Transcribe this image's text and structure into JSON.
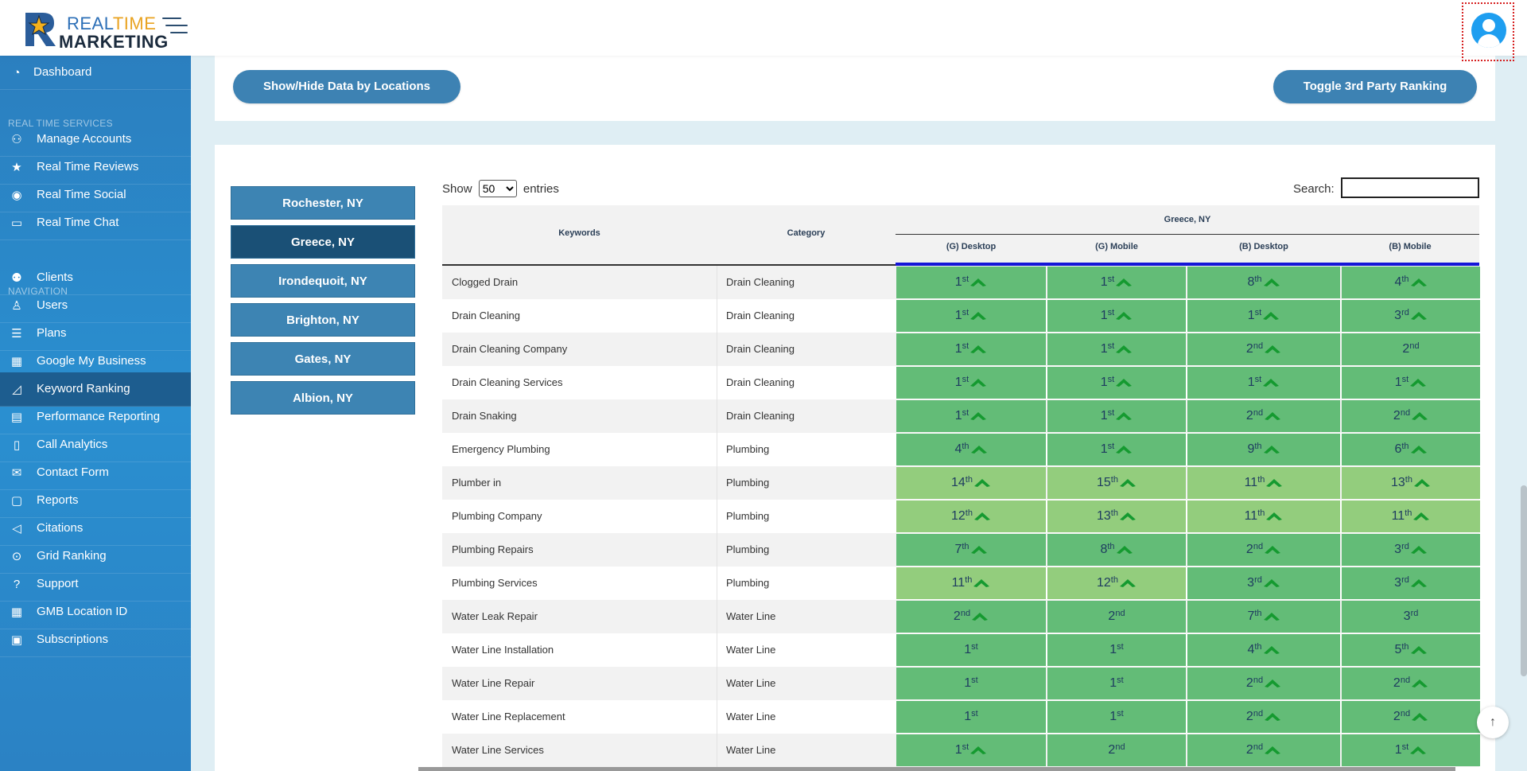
{
  "header": {
    "logo_real": "REAL",
    "logo_time": "TIME",
    "logo_marketing": "MARKETING"
  },
  "sidebar": {
    "sections": {
      "services": "REAL TIME SERVICES",
      "navigation": "NAVIGATION"
    },
    "items": [
      {
        "label": "Dashboard",
        "icon": "dashboard-icon",
        "glyph": "◔"
      },
      {
        "label": "Manage Accounts",
        "icon": "accounts-icon",
        "glyph": "⚇"
      },
      {
        "label": "Real Time Reviews",
        "icon": "star-icon",
        "glyph": "★"
      },
      {
        "label": "Real Time Social",
        "icon": "rss-icon",
        "glyph": "◉"
      },
      {
        "label": "Real Time Chat",
        "icon": "chat-icon",
        "glyph": "▭"
      },
      {
        "label": "Clients",
        "icon": "clients-icon",
        "glyph": "⚉"
      },
      {
        "label": "Users",
        "icon": "user-icon",
        "glyph": "♙"
      },
      {
        "label": "Plans",
        "icon": "list-icon",
        "glyph": "☰"
      },
      {
        "label": "Google My Business",
        "icon": "business-icon",
        "glyph": "▦"
      },
      {
        "label": "Keyword Ranking",
        "icon": "chart-icon",
        "glyph": "◿"
      },
      {
        "label": "Performance Reporting",
        "icon": "report-icon",
        "glyph": "▤"
      },
      {
        "label": "Call Analytics",
        "icon": "phone-icon",
        "glyph": "▯"
      },
      {
        "label": "Contact Form",
        "icon": "mail-icon",
        "glyph": "✉"
      },
      {
        "label": "Reports",
        "icon": "file-icon",
        "glyph": "▢"
      },
      {
        "label": "Citations",
        "icon": "megaphone-icon",
        "glyph": "◁"
      },
      {
        "label": "Grid Ranking",
        "icon": "grid-search-icon",
        "glyph": "⊙"
      },
      {
        "label": "Support",
        "icon": "help-icon",
        "glyph": "?"
      },
      {
        "label": "GMB Location ID",
        "icon": "building-icon",
        "glyph": "▦"
      },
      {
        "label": "Subscriptions",
        "icon": "subscription-icon",
        "glyph": "▣"
      }
    ]
  },
  "toolbar": {
    "show_hide_label": "Show/Hide Data by Locations",
    "toggle_label": "Toggle 3rd Party Ranking"
  },
  "locations": [
    "Rochester, NY",
    "Greece, NY",
    "Irondequoit, NY",
    "Brighton, NY",
    "Gates, NY",
    "Albion, NY"
  ],
  "table_controls": {
    "show": "Show",
    "entries_value": "50",
    "entries": "entries",
    "search": "Search:"
  },
  "table": {
    "headers": {
      "keywords": "Keywords",
      "category": "Category",
      "group": "Greece, NY",
      "cols": [
        "(G) Desktop",
        "(G) Mobile",
        "(B) Desktop",
        "(B) Mobile"
      ]
    },
    "colors": {
      "green": "#63bc77",
      "light_green": "#93cd7d",
      "arrow": "#159a30"
    },
    "rows": [
      {
        "keyword": "Clogged Drain",
        "category": "Drain Cleaning",
        "ranks": [
          [
            "1",
            "st",
            true,
            "g"
          ],
          [
            "1",
            "st",
            true,
            "g"
          ],
          [
            "8",
            "th",
            true,
            "g"
          ],
          [
            "4",
            "th",
            true,
            "g"
          ]
        ]
      },
      {
        "keyword": "Drain Cleaning",
        "category": "Drain Cleaning",
        "ranks": [
          [
            "1",
            "st",
            true,
            "g"
          ],
          [
            "1",
            "st",
            true,
            "g"
          ],
          [
            "1",
            "st",
            true,
            "g"
          ],
          [
            "3",
            "rd",
            true,
            "g"
          ]
        ]
      },
      {
        "keyword": "Drain Cleaning Company",
        "category": "Drain Cleaning",
        "ranks": [
          [
            "1",
            "st",
            true,
            "g"
          ],
          [
            "1",
            "st",
            true,
            "g"
          ],
          [
            "2",
            "nd",
            true,
            "g"
          ],
          [
            "2",
            "nd",
            false,
            "g"
          ]
        ]
      },
      {
        "keyword": "Drain Cleaning Services",
        "category": "Drain Cleaning",
        "ranks": [
          [
            "1",
            "st",
            true,
            "g"
          ],
          [
            "1",
            "st",
            true,
            "g"
          ],
          [
            "1",
            "st",
            true,
            "g"
          ],
          [
            "1",
            "st",
            true,
            "g"
          ]
        ]
      },
      {
        "keyword": "Drain Snaking",
        "category": "Drain Cleaning",
        "ranks": [
          [
            "1",
            "st",
            true,
            "g"
          ],
          [
            "1",
            "st",
            true,
            "g"
          ],
          [
            "2",
            "nd",
            true,
            "g"
          ],
          [
            "2",
            "nd",
            true,
            "g"
          ]
        ]
      },
      {
        "keyword": "Emergency Plumbing",
        "category": "Plumbing",
        "ranks": [
          [
            "4",
            "th",
            true,
            "g"
          ],
          [
            "1",
            "st",
            true,
            "g"
          ],
          [
            "9",
            "th",
            true,
            "g"
          ],
          [
            "6",
            "th",
            true,
            "g"
          ]
        ]
      },
      {
        "keyword": "Plumber in",
        "category": "Plumbing",
        "ranks": [
          [
            "14",
            "th",
            true,
            "l"
          ],
          [
            "15",
            "th",
            true,
            "l"
          ],
          [
            "11",
            "th",
            true,
            "l"
          ],
          [
            "13",
            "th",
            true,
            "l"
          ]
        ]
      },
      {
        "keyword": "Plumbing Company",
        "category": "Plumbing",
        "ranks": [
          [
            "12",
            "th",
            true,
            "l"
          ],
          [
            "13",
            "th",
            true,
            "l"
          ],
          [
            "11",
            "th",
            true,
            "l"
          ],
          [
            "11",
            "th",
            true,
            "l"
          ]
        ]
      },
      {
        "keyword": "Plumbing Repairs",
        "category": "Plumbing",
        "ranks": [
          [
            "7",
            "th",
            true,
            "g"
          ],
          [
            "8",
            "th",
            true,
            "g"
          ],
          [
            "2",
            "nd",
            true,
            "g"
          ],
          [
            "3",
            "rd",
            true,
            "g"
          ]
        ]
      },
      {
        "keyword": "Plumbing Services",
        "category": "Plumbing",
        "ranks": [
          [
            "11",
            "th",
            true,
            "l"
          ],
          [
            "12",
            "th",
            true,
            "l"
          ],
          [
            "3",
            "rd",
            true,
            "g"
          ],
          [
            "3",
            "rd",
            true,
            "g"
          ]
        ]
      },
      {
        "keyword": "Water Leak Repair",
        "category": "Water Line",
        "ranks": [
          [
            "2",
            "nd",
            true,
            "g"
          ],
          [
            "2",
            "nd",
            false,
            "g"
          ],
          [
            "7",
            "th",
            true,
            "g"
          ],
          [
            "3",
            "rd",
            false,
            "g"
          ]
        ]
      },
      {
        "keyword": "Water Line Installation",
        "category": "Water Line",
        "ranks": [
          [
            "1",
            "st",
            false,
            "g"
          ],
          [
            "1",
            "st",
            false,
            "g"
          ],
          [
            "4",
            "th",
            true,
            "g"
          ],
          [
            "5",
            "th",
            true,
            "g"
          ]
        ]
      },
      {
        "keyword": "Water Line Repair",
        "category": "Water Line",
        "ranks": [
          [
            "1",
            "st",
            false,
            "g"
          ],
          [
            "1",
            "st",
            false,
            "g"
          ],
          [
            "2",
            "nd",
            true,
            "g"
          ],
          [
            "2",
            "nd",
            true,
            "g"
          ]
        ]
      },
      {
        "keyword": "Water Line Replacement",
        "category": "Water Line",
        "ranks": [
          [
            "1",
            "st",
            false,
            "g"
          ],
          [
            "1",
            "st",
            false,
            "g"
          ],
          [
            "2",
            "nd",
            true,
            "g"
          ],
          [
            "2",
            "nd",
            true,
            "g"
          ]
        ]
      },
      {
        "keyword": "Water Line Services",
        "category": "Water Line",
        "ranks": [
          [
            "1",
            "st",
            true,
            "g"
          ],
          [
            "2",
            "nd",
            false,
            "g"
          ],
          [
            "2",
            "nd",
            true,
            "g"
          ],
          [
            "1",
            "st",
            true,
            "g"
          ]
        ]
      }
    ]
  }
}
